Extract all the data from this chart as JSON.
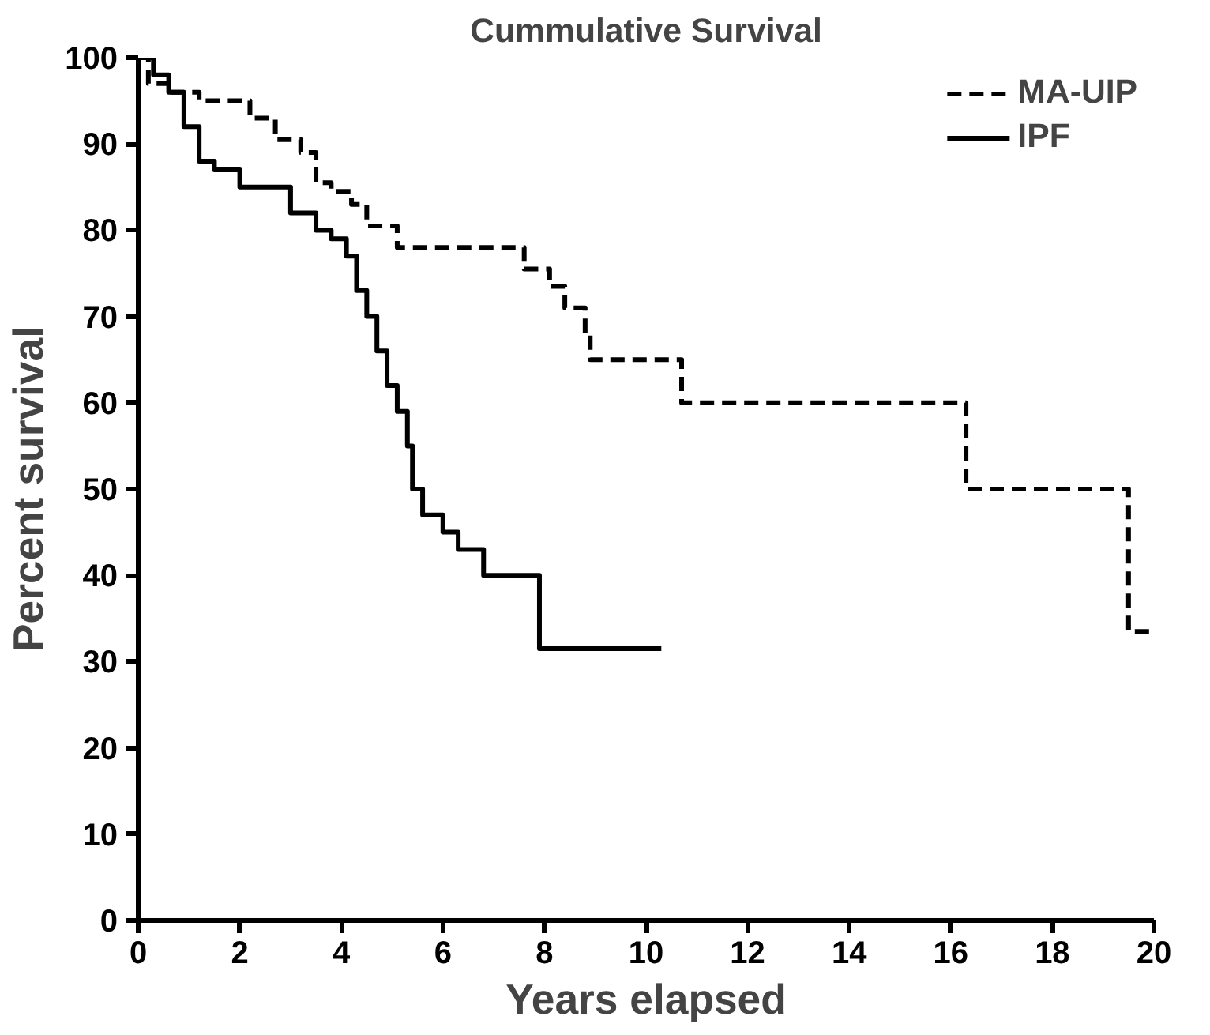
{
  "chart_data": {
    "type": "step",
    "title": "Cummulative Survival",
    "xlabel": "Years elapsed",
    "ylabel": "Percent survival",
    "xlim": [
      0,
      20
    ],
    "ylim": [
      0,
      100
    ],
    "xticks": [
      0,
      2,
      4,
      6,
      8,
      10,
      12,
      14,
      16,
      18,
      20
    ],
    "yticks": [
      0,
      10,
      20,
      30,
      40,
      50,
      60,
      70,
      80,
      90,
      100
    ],
    "grid": false,
    "legend": "top right",
    "marker": "none",
    "series": [
      {
        "name": "MA-UIP",
        "color": "#000000",
        "line_style": "dashed",
        "x": [
          0,
          0.2,
          0.6,
          1.2,
          2.2,
          2.7,
          3.2,
          3.5,
          3.8,
          4.2,
          4.5,
          5.1,
          7.6,
          8.1,
          8.4,
          8.8,
          8.9,
          10.7,
          16.3,
          19.5,
          20
        ],
        "values": [
          100,
          97,
          96,
          95,
          93,
          90.5,
          89,
          85.5,
          84.5,
          83,
          80.5,
          78,
          75.5,
          73.5,
          71,
          68,
          65,
          60,
          50,
          33.5,
          33.5
        ]
      },
      {
        "name": "IPF",
        "color": "#000000",
        "line_style": "solid",
        "x": [
          0,
          0.3,
          0.6,
          0.9,
          1.2,
          1.5,
          2.0,
          3.0,
          3.5,
          3.8,
          4.1,
          4.3,
          4.5,
          4.7,
          4.9,
          5.1,
          5.3,
          5.4,
          5.6,
          6.0,
          6.3,
          6.8,
          7.9,
          10.3
        ],
        "values": [
          100,
          98,
          96,
          92,
          88,
          87,
          85,
          82,
          80,
          79,
          77,
          73,
          70,
          66,
          62,
          59,
          55,
          50,
          47,
          45,
          43,
          40,
          31.5,
          31.5
        ]
      }
    ]
  }
}
